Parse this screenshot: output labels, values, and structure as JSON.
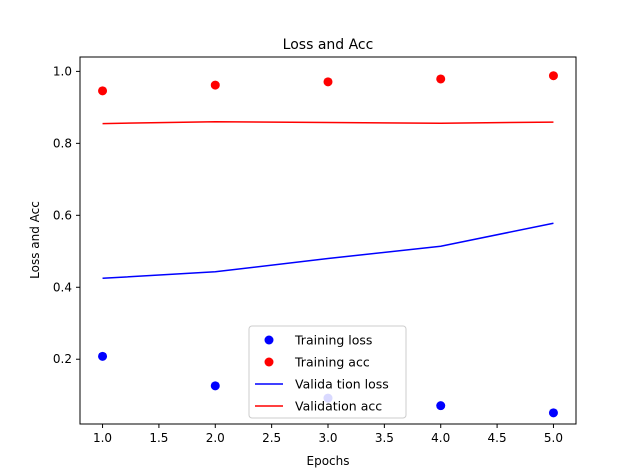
{
  "chart_data": {
    "type": "line",
    "title": "Loss and Acc",
    "xlabel": "Epochs",
    "ylabel": "Loss and Acc",
    "xlim": [
      0.8,
      5.2
    ],
    "ylim": [
      0.02,
      1.04
    ],
    "xticks": [
      1.0,
      1.5,
      2.0,
      2.5,
      3.0,
      3.5,
      4.0,
      4.5,
      5.0
    ],
    "xtick_labels": [
      "1.0",
      "1.5",
      "2.0",
      "2.5",
      "3.0",
      "3.5",
      "4.0",
      "4.5",
      "5.0"
    ],
    "yticks": [
      0.2,
      0.4,
      0.6,
      0.8,
      1.0
    ],
    "ytick_labels": [
      "0.2",
      "0.4",
      "0.6",
      "0.8",
      "1.0"
    ],
    "grid": false,
    "legend_position": "lower center",
    "x": [
      1,
      2,
      3,
      4,
      5
    ],
    "series": [
      {
        "name": "Training loss",
        "style": "points",
        "color": "#0000ff",
        "values": [
          0.208,
          0.126,
          0.092,
          0.071,
          0.051
        ]
      },
      {
        "name": "Training acc",
        "style": "points",
        "color": "#ff0000",
        "values": [
          0.946,
          0.962,
          0.971,
          0.979,
          0.988
        ]
      },
      {
        "name": "Valida tion loss",
        "style": "line",
        "color": "#0000ff",
        "values": [
          0.425,
          0.443,
          0.48,
          0.514,
          0.578
        ]
      },
      {
        "name": "Validation acc",
        "style": "line",
        "color": "#ff0000",
        "values": [
          0.855,
          0.86,
          0.858,
          0.856,
          0.859
        ]
      }
    ]
  }
}
